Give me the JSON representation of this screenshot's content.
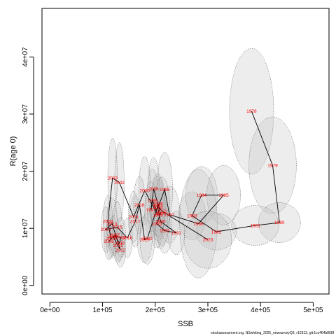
{
  "chart_data": {
    "type": "scatter",
    "title": "",
    "xlabel": "SSB",
    "ylabel": "R(age 0)",
    "xlim": [
      -15000,
      530000
    ],
    "ylim": [
      -1500000,
      48500000
    ],
    "x_ticks": [
      0,
      100000,
      200000,
      300000,
      400000,
      500000
    ],
    "x_tick_labels": [
      "0e+00",
      "1e+05",
      "2e+05",
      "3e+05",
      "4e+05",
      "5e+05"
    ],
    "y_ticks": [
      0,
      10000000,
      20000000,
      30000000,
      40000000
    ],
    "y_tick_labels": [
      "0e+00",
      "1e+07",
      "2e+07",
      "3e+07",
      "4e+07"
    ],
    "grid": false,
    "legend": "none",
    "colors": {
      "ellipse_fill": "#bebebe",
      "ellipse_stroke": "#555555",
      "path_line": "#000000",
      "year_label": "#ff0000"
    },
    "footer": "stockassessment.org, NSwhiting_2025_newsurveyQ3, r10313, git:1cc464b808f",
    "points": [
      {
        "label": "1978",
        "x": 383000,
        "y": 30500000,
        "sx": 42000,
        "sy": 11000000
      },
      {
        "label": "1979",
        "x": 423000,
        "y": 21000000,
        "sx": 45000,
        "sy": 8500000
      },
      {
        "label": "1980",
        "x": 436000,
        "y": 11000000,
        "sx": 40000,
        "sy": 3500000
      },
      {
        "label": "1981",
        "x": 390000,
        "y": 10500000,
        "sx": 45000,
        "sy": 3500000
      },
      {
        "label": "1982",
        "x": 316000,
        "y": 9400000,
        "sx": 38000,
        "sy": 3200000
      },
      {
        "label": "1983",
        "x": 270000,
        "y": 12200000,
        "sx": 26000,
        "sy": 4200000
      },
      {
        "label": "1984",
        "x": 288000,
        "y": 15800000,
        "sx": 30000,
        "sy": 5000000
      },
      {
        "label": "1985",
        "x": 330000,
        "y": 15800000,
        "sx": 32000,
        "sy": 5200000
      },
      {
        "label": "1986",
        "x": 282000,
        "y": 10800000,
        "sx": 36000,
        "sy": 9500000
      },
      {
        "label": "1987",
        "x": 227000,
        "y": 12400000,
        "sx": 20000,
        "sy": 5000000
      },
      {
        "label": "1988",
        "x": 218000,
        "y": 16800000,
        "sx": 15000,
        "sy": 6500000
      },
      {
        "label": "1989",
        "x": 205000,
        "y": 13600000,
        "sx": 14000,
        "sy": 5000000
      },
      {
        "label": "1990",
        "x": 210000,
        "y": 11200000,
        "sx": 14000,
        "sy": 4800000
      },
      {
        "label": "1991",
        "x": 240000,
        "y": 9200000,
        "sx": 16000,
        "sy": 3800000
      },
      {
        "label": "1992",
        "x": 218000,
        "y": 9600000,
        "sx": 14000,
        "sy": 4000000
      },
      {
        "label": "1993",
        "x": 203000,
        "y": 10800000,
        "sx": 13000,
        "sy": 4200000
      },
      {
        "label": "1994",
        "x": 210000,
        "y": 12600000,
        "sx": 13000,
        "sy": 4500000
      },
      {
        "label": "1995",
        "x": 205000,
        "y": 14300000,
        "sx": 12000,
        "sy": 4800000
      },
      {
        "label": "1996",
        "x": 197000,
        "y": 16900000,
        "sx": 11000,
        "sy": 5500000
      },
      {
        "label": "1997",
        "x": 192000,
        "y": 13200000,
        "sx": 12000,
        "sy": 5000000
      },
      {
        "label": "1998",
        "x": 195000,
        "y": 14900000,
        "sx": 11000,
        "sy": 5500000
      },
      {
        "label": "1999",
        "x": 205000,
        "y": 12300000,
        "sx": 12000,
        "sy": 4500000
      },
      {
        "label": "2000",
        "x": 180000,
        "y": 16600000,
        "sx": 11000,
        "sy": 6000000
      },
      {
        "label": "2001",
        "x": 159000,
        "y": 12000000,
        "sx": 10000,
        "sy": 4500000
      },
      {
        "label": "2002",
        "x": 132000,
        "y": 18000000,
        "sx": 9000,
        "sy": 7000000
      },
      {
        "label": "2003",
        "x": 119000,
        "y": 18800000,
        "sx": 9000,
        "sy": 7000000
      },
      {
        "label": "2004",
        "x": 110000,
        "y": 11200000,
        "sx": 9000,
        "sy": 4500000
      },
      {
        "label": "2005",
        "x": 116000,
        "y": 8200000,
        "sx": 9000,
        "sy": 3500000
      },
      {
        "label": "2006",
        "x": 112000,
        "y": 7700000,
        "sx": 9000,
        "sy": 3200000
      },
      {
        "label": "2007",
        "x": 123000,
        "y": 8800000,
        "sx": 9000,
        "sy": 3500000
      },
      {
        "label": "2008",
        "x": 132000,
        "y": 7400000,
        "sx": 9000,
        "sy": 3200000
      },
      {
        "label": "2009",
        "x": 135000,
        "y": 8400000,
        "sx": 9000,
        "sy": 3500000
      },
      {
        "label": "2010",
        "x": 120000,
        "y": 8600000,
        "sx": 9000,
        "sy": 3500000
      },
      {
        "label": "2011",
        "x": 129000,
        "y": 7000000,
        "sx": 9000,
        "sy": 3000000
      },
      {
        "label": "2012",
        "x": 134000,
        "y": 6200000,
        "sx": 10000,
        "sy": 3000000
      },
      {
        "label": "2013",
        "x": 118000,
        "y": 10800000,
        "sx": 10000,
        "sy": 4500000
      },
      {
        "label": "2014",
        "x": 106000,
        "y": 9800000,
        "sx": 9000,
        "sy": 4000000
      },
      {
        "label": "2015",
        "x": 128000,
        "y": 10200000,
        "sx": 9000,
        "sy": 4500000
      },
      {
        "label": "2016",
        "x": 147000,
        "y": 8300000,
        "sx": 10000,
        "sy": 3500000
      },
      {
        "label": "2017",
        "x": 162000,
        "y": 11200000,
        "sx": 11000,
        "sy": 4500000
      },
      {
        "label": "2018",
        "x": 170000,
        "y": 14100000,
        "sx": 11000,
        "sy": 5000000
      },
      {
        "label": "2019",
        "x": 180000,
        "y": 8000000,
        "sx": 14000,
        "sy": 4000000
      },
      {
        "label": "2020",
        "x": 185000,
        "y": 8200000,
        "sx": 14000,
        "sy": 4500000
      },
      {
        "label": "2021",
        "x": 205000,
        "y": 14000000,
        "sx": 14000,
        "sy": 5500000
      },
      {
        "label": "2022",
        "x": 213000,
        "y": 13000000,
        "sx": 15000,
        "sy": 6000000
      },
      {
        "label": "2023",
        "x": 300000,
        "y": 8000000,
        "sx": 45000,
        "sy": 5000000
      }
    ]
  }
}
